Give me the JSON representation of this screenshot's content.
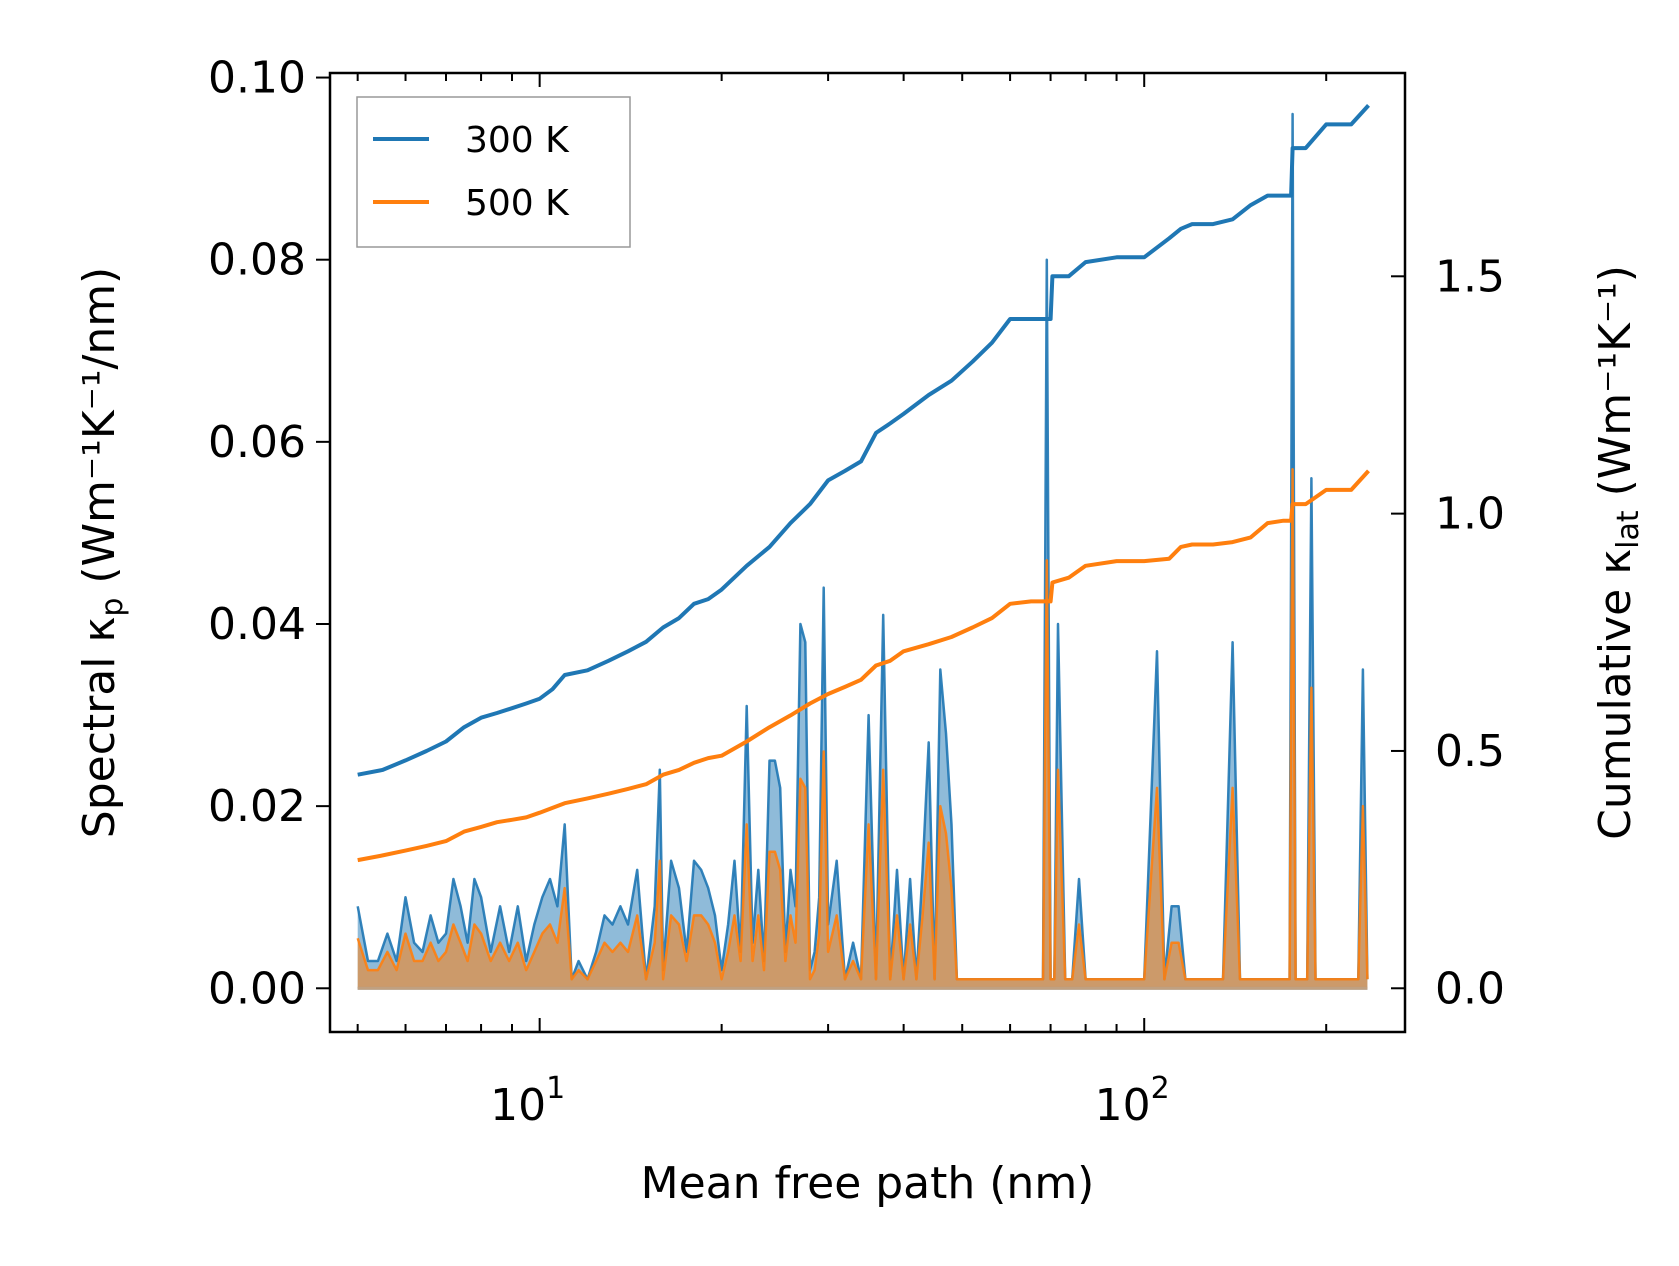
{
  "chart_data": {
    "type": "line",
    "x_scale": "log",
    "xlabel": "Mean free path (nm)",
    "ylabel_left": {
      "pre": "Spectral κ",
      "sub": "p",
      "post": " (Wm⁻¹K⁻¹/nm)"
    },
    "ylabel_right": {
      "pre": "Cumulative κ",
      "sub": "lat",
      "post": " (Wm⁻¹K⁻¹)"
    },
    "xlim": [
      4.5,
      270
    ],
    "ylim_left": [
      -0.0048,
      0.1005
    ],
    "ylim_right": [
      -0.0921,
      1.9283
    ],
    "x_ticks": [
      {
        "value": 10,
        "base": "10",
        "exp": "1"
      },
      {
        "value": 100,
        "base": "10",
        "exp": "2"
      }
    ],
    "y_ticks_left": [
      "0.00",
      "0.02",
      "0.04",
      "0.06",
      "0.08",
      "0.10"
    ],
    "y_ticks_right": [
      "0.0",
      "0.5",
      "1.0",
      "1.5"
    ],
    "legend": {
      "position": "top-left",
      "entries": [
        {
          "name": "300 K",
          "color": "#1f77b4"
        },
        {
          "name": "500 K",
          "color": "#ff7f0e"
        }
      ]
    },
    "series_cumulative": [
      {
        "name": "300 K",
        "color": "#1f77b4",
        "x": [
          5,
          5.5,
          6,
          6.5,
          7,
          7.5,
          8,
          8.5,
          9,
          9.5,
          10,
          10.5,
          11,
          12,
          13,
          14,
          15,
          16,
          17,
          18,
          19,
          20,
          22,
          24,
          26,
          28,
          30,
          32,
          34,
          36,
          38,
          40,
          44,
          48,
          52,
          56,
          60,
          65,
          70,
          70.5,
          75,
          80,
          90,
          100,
          110,
          115,
          120,
          130,
          140,
          150,
          160,
          170,
          175,
          176,
          185,
          200,
          220,
          235
        ],
        "y": [
          0.45,
          0.46,
          0.48,
          0.5,
          0.52,
          0.55,
          0.57,
          0.58,
          0.59,
          0.6,
          0.61,
          0.63,
          0.66,
          0.67,
          0.69,
          0.71,
          0.73,
          0.76,
          0.78,
          0.81,
          0.82,
          0.84,
          0.89,
          0.93,
          0.98,
          1.02,
          1.07,
          1.09,
          1.11,
          1.17,
          1.19,
          1.21,
          1.25,
          1.28,
          1.32,
          1.36,
          1.41,
          1.41,
          1.41,
          1.5,
          1.5,
          1.53,
          1.54,
          1.54,
          1.58,
          1.6,
          1.61,
          1.61,
          1.62,
          1.65,
          1.67,
          1.67,
          1.67,
          1.77,
          1.77,
          1.82,
          1.82,
          1.86
        ]
      },
      {
        "name": "500 K",
        "color": "#ff7f0e",
        "x": [
          5,
          5.5,
          6,
          6.5,
          7,
          7.5,
          8,
          8.5,
          9,
          9.5,
          10,
          10.5,
          11,
          12,
          13,
          14,
          15,
          16,
          17,
          18,
          19,
          20,
          22,
          24,
          26,
          28,
          30,
          32,
          34,
          36,
          38,
          40,
          44,
          48,
          52,
          56,
          60,
          65,
          70,
          70.5,
          75,
          80,
          90,
          100,
          110,
          115,
          120,
          130,
          140,
          150,
          160,
          170,
          175,
          176,
          185,
          200,
          220,
          235
        ],
        "y": [
          0.27,
          0.28,
          0.29,
          0.3,
          0.31,
          0.33,
          0.34,
          0.35,
          0.355,
          0.36,
          0.37,
          0.38,
          0.39,
          0.4,
          0.41,
          0.42,
          0.43,
          0.45,
          0.46,
          0.475,
          0.485,
          0.49,
          0.52,
          0.55,
          0.575,
          0.6,
          0.62,
          0.635,
          0.65,
          0.68,
          0.69,
          0.71,
          0.725,
          0.74,
          0.76,
          0.78,
          0.81,
          0.815,
          0.815,
          0.855,
          0.865,
          0.89,
          0.9,
          0.9,
          0.905,
          0.93,
          0.935,
          0.935,
          0.94,
          0.95,
          0.98,
          0.985,
          0.985,
          1.02,
          1.02,
          1.05,
          1.05,
          1.09
        ]
      }
    ],
    "series_spectral": [
      {
        "name": "300 K",
        "color": "#1f77b4",
        "x": [
          5,
          5.2,
          5.4,
          5.6,
          5.8,
          6,
          6.2,
          6.4,
          6.6,
          6.8,
          7,
          7.2,
          7.4,
          7.6,
          7.8,
          8,
          8.3,
          8.6,
          8.9,
          9.2,
          9.5,
          9.8,
          10.1,
          10.4,
          10.7,
          11,
          11.3,
          11.6,
          12,
          12.4,
          12.8,
          13.2,
          13.6,
          14,
          14.5,
          15,
          15.5,
          15.8,
          16,
          16.5,
          17,
          17.5,
          18,
          18.5,
          19,
          19.5,
          20,
          20.5,
          21,
          21.5,
          22,
          22.5,
          23,
          23.5,
          24,
          24.5,
          25,
          25.5,
          26,
          26.5,
          27,
          27.5,
          28,
          28.5,
          29,
          29.5,
          30,
          31,
          32,
          33,
          34,
          35,
          36,
          37,
          38,
          39,
          40,
          41,
          42,
          43,
          44,
          45,
          46,
          47,
          48,
          49,
          50,
          51,
          52,
          53,
          54,
          55,
          56,
          57,
          58,
          59,
          60,
          62,
          64,
          66,
          68,
          69,
          70,
          71,
          72,
          74,
          76,
          78,
          80,
          83,
          86,
          88,
          90,
          95,
          100,
          105,
          108,
          111,
          114,
          117,
          120,
          125,
          130,
          135,
          140,
          144,
          148,
          152,
          156,
          160,
          165,
          170,
          174,
          176,
          178,
          180,
          183,
          186,
          189,
          192,
          195,
          200,
          210,
          220,
          226,
          230,
          234
        ],
        "y": [
          0.009,
          0.003,
          0.003,
          0.006,
          0.003,
          0.01,
          0.005,
          0.004,
          0.008,
          0.005,
          0.006,
          0.012,
          0.009,
          0.005,
          0.012,
          0.01,
          0.004,
          0.009,
          0.004,
          0.009,
          0.003,
          0.007,
          0.01,
          0.012,
          0.009,
          0.018,
          0.001,
          0.003,
          0.001,
          0.004,
          0.008,
          0.007,
          0.009,
          0.007,
          0.013,
          0.001,
          0.009,
          0.024,
          0.002,
          0.014,
          0.011,
          0.004,
          0.014,
          0.013,
          0.011,
          0.008,
          0.002,
          0.007,
          0.014,
          0.004,
          0.031,
          0.005,
          0.013,
          0.003,
          0.025,
          0.025,
          0.022,
          0.004,
          0.013,
          0.009,
          0.04,
          0.038,
          0.002,
          0.004,
          0.01,
          0.044,
          0.007,
          0.014,
          0.001,
          0.005,
          0.001,
          0.03,
          0.001,
          0.041,
          0.001,
          0.013,
          0.001,
          0.012,
          0.001,
          0.013,
          0.027,
          0.001,
          0.035,
          0.028,
          0.018,
          0.001,
          0.001,
          0.001,
          0.001,
          0.001,
          0.001,
          0.001,
          0.001,
          0.001,
          0.001,
          0.001,
          0.001,
          0.001,
          0.001,
          0.001,
          0.001,
          0.08,
          0.001,
          0.001,
          0.04,
          0.001,
          0.001,
          0.012,
          0.001,
          0.001,
          0.001,
          0.001,
          0.001,
          0.001,
          0.001,
          0.037,
          0.001,
          0.009,
          0.009,
          0.001,
          0.001,
          0.001,
          0.001,
          0.001,
          0.038,
          0.001,
          0.001,
          0.001,
          0.001,
          0.001,
          0.001,
          0.001,
          0.001,
          0.096,
          0.001,
          0.001,
          0.001,
          0.001,
          0.056,
          0.001,
          0.001,
          0.001,
          0.001,
          0.001,
          0.001,
          0.035,
          0.001
        ]
      },
      {
        "name": "500 K",
        "color": "#ff7f0e",
        "x": [
          5,
          5.2,
          5.4,
          5.6,
          5.8,
          6,
          6.2,
          6.4,
          6.6,
          6.8,
          7,
          7.2,
          7.4,
          7.6,
          7.8,
          8,
          8.3,
          8.6,
          8.9,
          9.2,
          9.5,
          9.8,
          10.1,
          10.4,
          10.7,
          11,
          11.3,
          11.6,
          12,
          12.4,
          12.8,
          13.2,
          13.6,
          14,
          14.5,
          15,
          15.5,
          15.8,
          16,
          16.5,
          17,
          17.5,
          18,
          18.5,
          19,
          19.5,
          20,
          20.5,
          21,
          21.5,
          22,
          22.5,
          23,
          23.5,
          24,
          24.5,
          25,
          25.5,
          26,
          26.5,
          27,
          27.5,
          28,
          28.5,
          29,
          29.5,
          30,
          31,
          32,
          33,
          34,
          35,
          36,
          37,
          38,
          39,
          40,
          41,
          42,
          43,
          44,
          45,
          46,
          47,
          48,
          49,
          50,
          51,
          52,
          53,
          54,
          55,
          56,
          57,
          58,
          59,
          60,
          62,
          64,
          66,
          68,
          69,
          70,
          71,
          72,
          74,
          76,
          78,
          80,
          83,
          86,
          88,
          90,
          95,
          100,
          105,
          108,
          111,
          114,
          117,
          120,
          125,
          130,
          135,
          140,
          144,
          148,
          152,
          156,
          160,
          165,
          170,
          174,
          176,
          178,
          180,
          183,
          186,
          189,
          192,
          195,
          200,
          210,
          220,
          226,
          230,
          234
        ],
        "y": [
          0.0055,
          0.002,
          0.002,
          0.004,
          0.002,
          0.006,
          0.003,
          0.003,
          0.005,
          0.003,
          0.004,
          0.007,
          0.005,
          0.003,
          0.007,
          0.006,
          0.003,
          0.005,
          0.003,
          0.005,
          0.002,
          0.004,
          0.006,
          0.007,
          0.005,
          0.011,
          0.001,
          0.002,
          0.001,
          0.003,
          0.005,
          0.004,
          0.005,
          0.004,
          0.008,
          0.001,
          0.005,
          0.014,
          0.001,
          0.008,
          0.007,
          0.003,
          0.008,
          0.008,
          0.007,
          0.005,
          0.001,
          0.004,
          0.008,
          0.003,
          0.018,
          0.003,
          0.008,
          0.002,
          0.015,
          0.015,
          0.013,
          0.003,
          0.008,
          0.005,
          0.023,
          0.022,
          0.001,
          0.002,
          0.006,
          0.026,
          0.004,
          0.008,
          0.001,
          0.003,
          0.001,
          0.018,
          0.001,
          0.024,
          0.001,
          0.008,
          0.001,
          0.007,
          0.001,
          0.008,
          0.016,
          0.001,
          0.02,
          0.017,
          0.011,
          0.001,
          0.001,
          0.001,
          0.001,
          0.001,
          0.001,
          0.001,
          0.001,
          0.001,
          0.001,
          0.001,
          0.001,
          0.001,
          0.001,
          0.001,
          0.001,
          0.047,
          0.001,
          0.001,
          0.024,
          0.001,
          0.001,
          0.007,
          0.001,
          0.001,
          0.001,
          0.001,
          0.001,
          0.001,
          0.001,
          0.022,
          0.001,
          0.005,
          0.005,
          0.001,
          0.001,
          0.001,
          0.001,
          0.001,
          0.022,
          0.001,
          0.001,
          0.001,
          0.001,
          0.001,
          0.001,
          0.001,
          0.001,
          0.057,
          0.001,
          0.001,
          0.001,
          0.001,
          0.033,
          0.001,
          0.001,
          0.001,
          0.001,
          0.001,
          0.001,
          0.02,
          0.001
        ]
      }
    ]
  }
}
